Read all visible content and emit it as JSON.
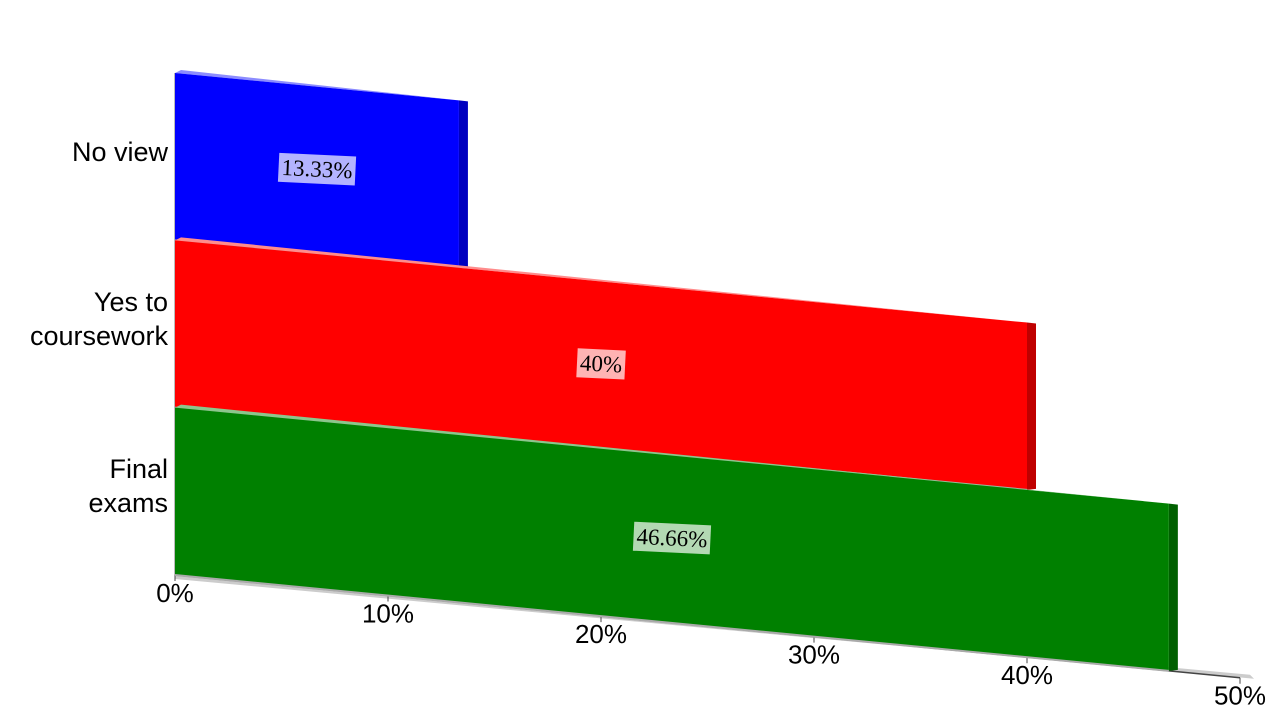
{
  "chart_data": {
    "type": "bar",
    "orientation": "horizontal",
    "categories": [
      "No view",
      "Yes to\ncoursework",
      "Final\nexams"
    ],
    "values": [
      13.33,
      40,
      46.66
    ],
    "value_labels": [
      "13.33%",
      "40%",
      "46.66%"
    ],
    "colors": [
      "#0000ff",
      "#ff0000",
      "#008000"
    ],
    "xlim": [
      0,
      50
    ],
    "xticks": [
      {
        "value": 0,
        "label": "0%"
      },
      {
        "value": 10,
        "label": "10%"
      },
      {
        "value": 20,
        "label": "20%"
      },
      {
        "value": 30,
        "label": "30%"
      },
      {
        "value": 40,
        "label": "40%"
      },
      {
        "value": 50,
        "label": "50%"
      }
    ]
  }
}
